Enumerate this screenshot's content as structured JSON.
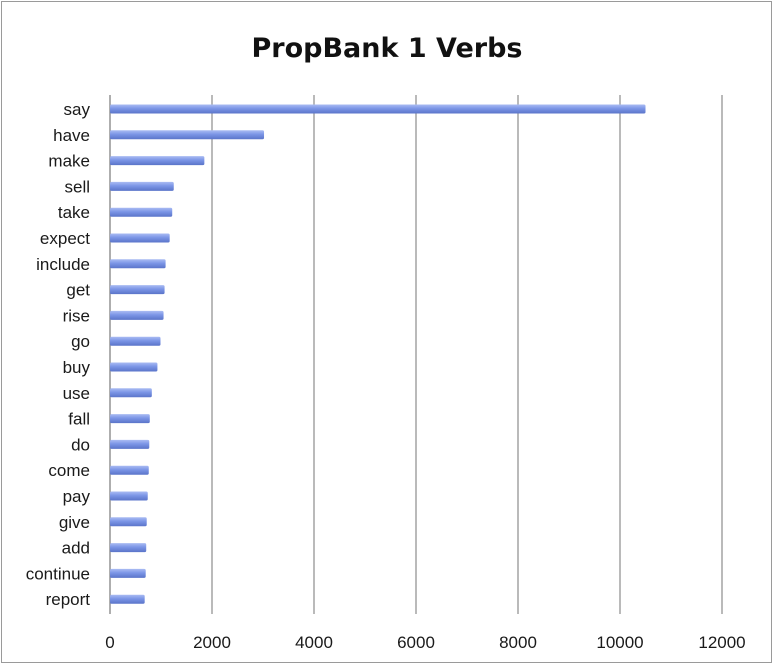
{
  "chart_data": {
    "type": "bar",
    "orientation": "horizontal",
    "title": "PropBank 1 Verbs",
    "xlabel": "",
    "ylabel": "",
    "xlim": [
      0,
      12000
    ],
    "x_ticks": [
      "0",
      "2000",
      "4000",
      "6000",
      "8000",
      "10000",
      "12000"
    ],
    "grid": true,
    "legend": "none",
    "bar_color": "#7b95e6",
    "categories": [
      "say",
      "have",
      "make",
      "sell",
      "take",
      "expect",
      "include",
      "get",
      "rise",
      "go",
      "buy",
      "use",
      "fall",
      "do",
      "come",
      "pay",
      "give",
      "add",
      "continue",
      "report"
    ],
    "values": [
      10500,
      3020,
      1850,
      1250,
      1220,
      1170,
      1090,
      1070,
      1050,
      990,
      930,
      820,
      780,
      770,
      760,
      740,
      720,
      710,
      700,
      680
    ]
  }
}
